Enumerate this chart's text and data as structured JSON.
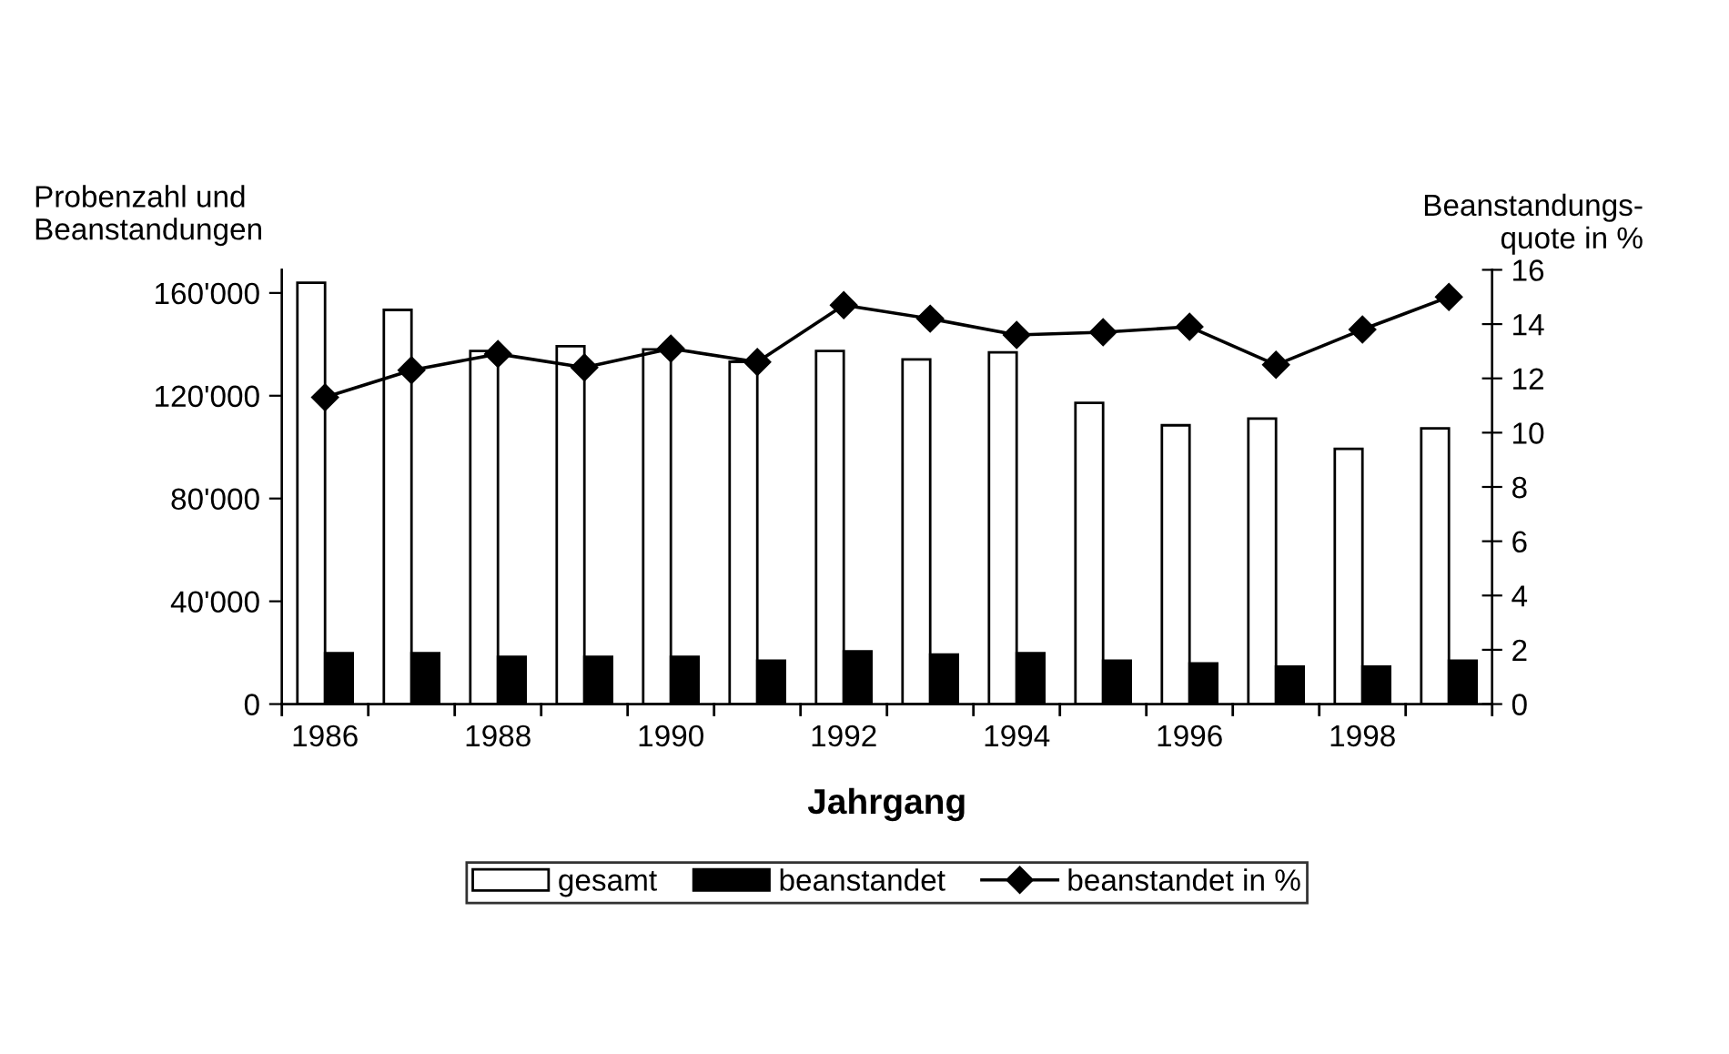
{
  "chart_data": {
    "type": "bar",
    "xlabel": "Jahrgang",
    "ylabel": "Probenzahl und\nBeanstandungen",
    "y2label": "Beanstandungs-\nquote in %",
    "categories": [
      "1986",
      null,
      "1988",
      null,
      "1990",
      null,
      "1992",
      null,
      "1994",
      null,
      "1996",
      null,
      "1998",
      null
    ],
    "series": [
      {
        "name": "gesamt",
        "color": "#ffffff",
        "values": [
          164000,
          153400,
          137400,
          139300,
          138000,
          133200,
          137400,
          134100,
          136900,
          117200,
          108500,
          111100,
          99300,
          107300
        ]
      },
      {
        "name": "beanstandet",
        "color": "#000000",
        "values": [
          19800,
          19800,
          18400,
          18400,
          18400,
          16900,
          20500,
          19300,
          19800,
          16900,
          15800,
          14600,
          14600,
          16900
        ]
      },
      {
        "name": "beanstandet in %",
        "type": "line",
        "axis": "y2",
        "color": "#000000",
        "marker": "diamond",
        "values": [
          11.3,
          12.3,
          12.9,
          12.4,
          13.1,
          12.6,
          14.7,
          14.2,
          13.6,
          13.7,
          13.9,
          12.5,
          13.8,
          15.0
        ]
      }
    ],
    "ylim": [
      0,
      169000
    ],
    "yticks": [
      {
        "value": 0,
        "label": "0"
      },
      {
        "value": 40000,
        "label": "40'000"
      },
      {
        "value": 80000,
        "label": "80'000"
      },
      {
        "value": 120000,
        "label": "120'000"
      },
      {
        "value": 160000,
        "label": "160'000"
      }
    ],
    "y2lim": [
      0,
      16
    ],
    "y2ticks": [
      0,
      2,
      4,
      6,
      8,
      10,
      12,
      14,
      16
    ],
    "grid": false,
    "legend": "bottom"
  }
}
